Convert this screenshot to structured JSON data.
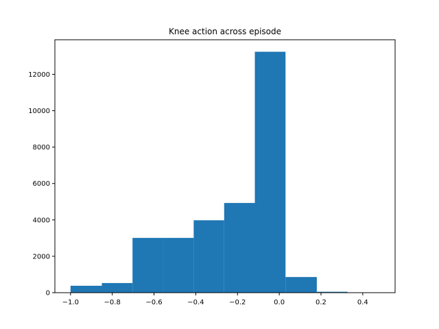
{
  "chart_data": {
    "type": "bar",
    "title": "Knee action across episode",
    "xlabel": "",
    "ylabel": "",
    "xlim": [
      -1.075,
      0.555
    ],
    "ylim": [
      0,
      13900
    ],
    "bar_color": "#1f77b4",
    "grid": false,
    "x_ticks": [
      -1.0,
      -0.8,
      -0.6,
      -0.4,
      -0.2,
      0.0,
      0.2,
      0.4
    ],
    "x_tick_labels": [
      "−1.0",
      "−0.8",
      "−0.6",
      "−0.4",
      "−0.2",
      "0.0",
      "0.2",
      "0.4"
    ],
    "y_ticks": [
      0,
      2000,
      4000,
      6000,
      8000,
      10000,
      12000
    ],
    "y_tick_labels": [
      "0",
      "2000",
      "4000",
      "6000",
      "8000",
      "10000",
      "12000"
    ],
    "bins": [
      {
        "x0": -1.0,
        "x1": -0.85,
        "count": 380
      },
      {
        "x0": -0.85,
        "x1": -0.703,
        "count": 530
      },
      {
        "x0": -0.703,
        "x1": -0.556,
        "count": 3010
      },
      {
        "x0": -0.556,
        "x1": -0.41,
        "count": 3010
      },
      {
        "x0": -0.41,
        "x1": -0.264,
        "count": 3980
      },
      {
        "x0": -0.264,
        "x1": -0.117,
        "count": 4930
      },
      {
        "x0": -0.117,
        "x1": 0.03,
        "count": 13240
      },
      {
        "x0": 0.03,
        "x1": 0.18,
        "count": 860
      },
      {
        "x0": 0.18,
        "x1": 0.327,
        "count": 50
      },
      {
        "x0": 0.327,
        "x1": 0.473,
        "count": 8
      }
    ]
  }
}
